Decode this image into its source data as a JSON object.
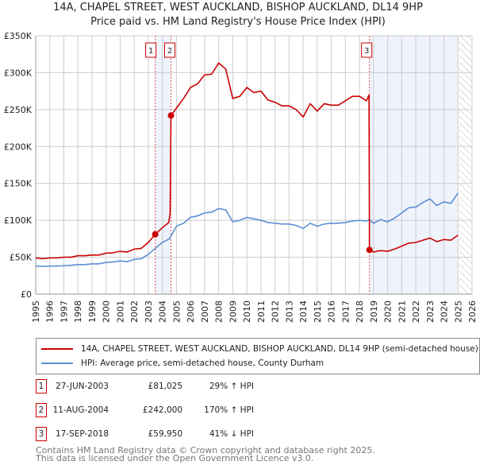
{
  "chart_data": {
    "type": "line",
    "title": "14A, CHAPEL STREET, WEST AUCKLAND, BISHOP AUCKLAND, DL14 9HP",
    "subtitle": "Price paid vs. HM Land Registry's House Price Index (HPI)",
    "xlim": [
      1995,
      2026
    ],
    "ylim": [
      0,
      350000
    ],
    "x_ticks": [
      "1995",
      "1996",
      "1997",
      "1998",
      "1999",
      "2000",
      "2001",
      "2002",
      "2003",
      "2004",
      "2005",
      "2006",
      "2007",
      "2008",
      "2009",
      "2010",
      "2011",
      "2012",
      "2013",
      "2014",
      "2015",
      "2016",
      "2017",
      "2018",
      "2019",
      "2020",
      "2021",
      "2022",
      "2023",
      "2024",
      "2025",
      "2026"
    ],
    "y_ticks": [
      {
        "v": 0,
        "label": "£0"
      },
      {
        "v": 50000,
        "label": "£50K"
      },
      {
        "v": 100000,
        "label": "£100K"
      },
      {
        "v": 150000,
        "label": "£150K"
      },
      {
        "v": 200000,
        "label": "£200K"
      },
      {
        "v": 250000,
        "label": "£250K"
      },
      {
        "v": 300000,
        "label": "£300K"
      },
      {
        "v": 350000,
        "label": "£350K"
      }
    ],
    "grid": true,
    "shaded_ranges": [
      [
        2003.49,
        2004.61
      ],
      [
        2018.71,
        2025.0
      ]
    ],
    "hatched_from": 2025.1,
    "colors": {
      "property": "#cc0000",
      "hpi": "#5b8fd4",
      "shade": "#eef3fc"
    },
    "series": [
      {
        "name": "14A, CHAPEL STREET, WEST AUCKLAND, BISHOP AUCKLAND, DL14 9HP (semi-detached house)",
        "color": "#cc0000",
        "points": [
          [
            1995,
            49
          ],
          [
            1995.5,
            48
          ],
          [
            1996,
            49
          ],
          [
            1996.5,
            49
          ],
          [
            1997,
            50
          ],
          [
            1997.5,
            50
          ],
          [
            1998,
            52
          ],
          [
            1998.5,
            52
          ],
          [
            1999,
            53
          ],
          [
            1999.5,
            53
          ],
          [
            2000,
            55.5
          ],
          [
            2000.5,
            56
          ],
          [
            2001,
            58
          ],
          [
            2001.5,
            57
          ],
          [
            2002,
            61
          ],
          [
            2002.5,
            62
          ],
          [
            2003,
            70
          ],
          [
            2003.49,
            81
          ],
          [
            2004,
            90
          ],
          [
            2004.45,
            97
          ],
          [
            2004.55,
            110
          ],
          [
            2004.61,
            242
          ],
          [
            2005,
            252
          ],
          [
            2005.5,
            265
          ],
          [
            2006,
            280
          ],
          [
            2006.5,
            285
          ],
          [
            2007,
            297
          ],
          [
            2007.5,
            298
          ],
          [
            2008,
            313
          ],
          [
            2008.5,
            305
          ],
          [
            2009,
            265
          ],
          [
            2009.5,
            268
          ],
          [
            2010,
            280
          ],
          [
            2010.5,
            273
          ],
          [
            2011,
            275
          ],
          [
            2011.5,
            263
          ],
          [
            2012,
            260
          ],
          [
            2012.5,
            255
          ],
          [
            2013,
            255
          ],
          [
            2013.5,
            250
          ],
          [
            2014,
            240
          ],
          [
            2014.5,
            258
          ],
          [
            2015,
            248
          ],
          [
            2015.5,
            258
          ],
          [
            2016,
            256
          ],
          [
            2016.5,
            256
          ],
          [
            2017,
            262
          ],
          [
            2017.5,
            268
          ],
          [
            2018,
            268
          ],
          [
            2018.5,
            262
          ],
          [
            2018.68,
            270
          ],
          [
            2018.71,
            60
          ],
          [
            2019,
            57
          ],
          [
            2019.5,
            59
          ],
          [
            2020,
            58
          ],
          [
            2020.5,
            61
          ],
          [
            2021,
            65
          ],
          [
            2021.5,
            69
          ],
          [
            2022,
            70
          ],
          [
            2022.5,
            73
          ],
          [
            2023,
            76
          ],
          [
            2023.5,
            71
          ],
          [
            2024,
            74
          ],
          [
            2024.5,
            73
          ],
          [
            2025,
            80
          ]
        ]
      },
      {
        "name": "HPI: Average price, semi-detached house, County Durham",
        "color": "#5b8fd4",
        "points": [
          [
            1995,
            38
          ],
          [
            1995.5,
            37.5
          ],
          [
            1996,
            38
          ],
          [
            1996.5,
            38
          ],
          [
            1997,
            38.5
          ],
          [
            1997.5,
            39
          ],
          [
            1998,
            40
          ],
          [
            1998.5,
            40
          ],
          [
            1999,
            41
          ],
          [
            1999.5,
            41
          ],
          [
            2000,
            43
          ],
          [
            2000.5,
            43.5
          ],
          [
            2001,
            45
          ],
          [
            2001.5,
            44
          ],
          [
            2002,
            47
          ],
          [
            2002.5,
            48
          ],
          [
            2003,
            54
          ],
          [
            2003.5,
            62
          ],
          [
            2004,
            70
          ],
          [
            2004.5,
            75
          ],
          [
            2005,
            92
          ],
          [
            2005.5,
            96
          ],
          [
            2006,
            104
          ],
          [
            2006.5,
            106
          ],
          [
            2007,
            110
          ],
          [
            2007.5,
            111
          ],
          [
            2008,
            116
          ],
          [
            2008.5,
            114
          ],
          [
            2009,
            98
          ],
          [
            2009.5,
            100
          ],
          [
            2010,
            104
          ],
          [
            2010.5,
            102
          ],
          [
            2011,
            100
          ],
          [
            2011.5,
            97
          ],
          [
            2012,
            96
          ],
          [
            2012.5,
            95
          ],
          [
            2013,
            95
          ],
          [
            2013.5,
            93
          ],
          [
            2014,
            89
          ],
          [
            2014.5,
            96
          ],
          [
            2015,
            92
          ],
          [
            2015.5,
            95
          ],
          [
            2016,
            96
          ],
          [
            2016.5,
            96
          ],
          [
            2017,
            97
          ],
          [
            2017.5,
            99
          ],
          [
            2018,
            100
          ],
          [
            2018.5,
            99
          ],
          [
            2018.7,
            101
          ],
          [
            2019,
            96
          ],
          [
            2019.5,
            101
          ],
          [
            2020,
            98
          ],
          [
            2020.5,
            103
          ],
          [
            2021,
            110
          ],
          [
            2021.5,
            117
          ],
          [
            2022,
            118
          ],
          [
            2022.5,
            124
          ],
          [
            2023,
            129
          ],
          [
            2023.5,
            120
          ],
          [
            2024,
            125
          ],
          [
            2024.5,
            123
          ],
          [
            2025,
            137
          ]
        ]
      }
    ],
    "units_note": "points y in £ thousands",
    "sales": [
      {
        "id": "1",
        "x": 2003.49,
        "price": 81025,
        "date": "27-JUN-2003",
        "price_label": "£81,025",
        "hpi": "29% ↑ HPI"
      },
      {
        "id": "2",
        "x": 2004.61,
        "price": 242000,
        "date": "11-AUG-2004",
        "price_label": "£242,000",
        "hpi": "170% ↑ HPI"
      },
      {
        "id": "3",
        "x": 2018.71,
        "price": 59950,
        "date": "17-SEP-2018",
        "price_label": "£59,950",
        "hpi": "41% ↓ HPI"
      }
    ]
  },
  "footer": {
    "line1": "Contains HM Land Registry data © Crown copyright and database right 2025.",
    "line2": "This data is licensed under the Open Government Licence v3.0."
  }
}
